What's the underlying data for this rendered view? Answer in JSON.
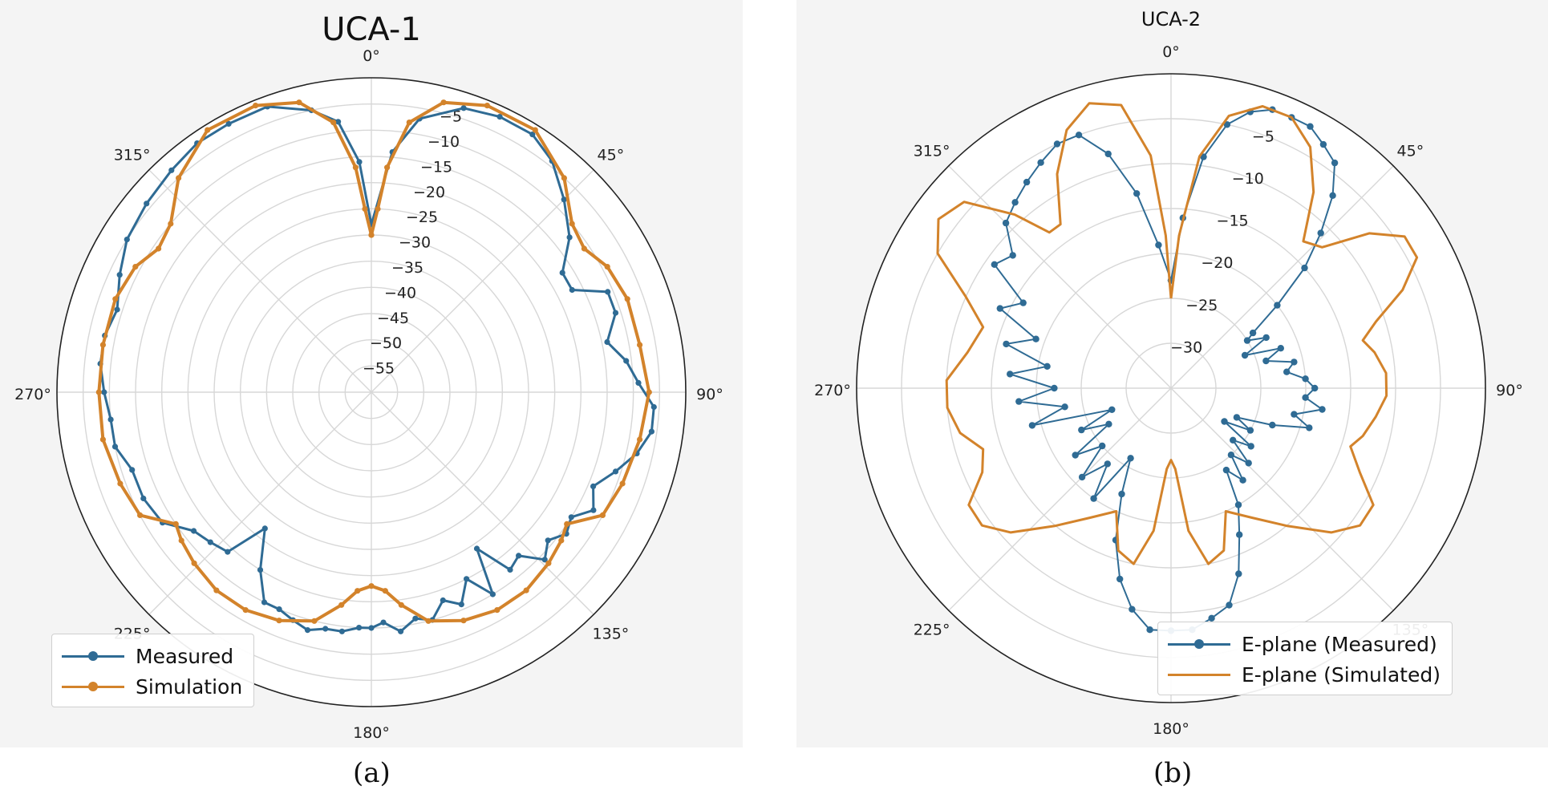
{
  "colors": {
    "measured": "#2f6b94",
    "simulated": "#d3832b",
    "grid": "#d7d7d7",
    "frame": "#222222"
  },
  "chart_data": [
    {
      "type": "polar",
      "title": "UCA-1",
      "caption": "(a)",
      "theta_direction": "clockwise",
      "theta_zero": "top",
      "theta_ticks": [
        "0°",
        "45°",
        "90°",
        "135°",
        "180°",
        "225°",
        "270°",
        "315°"
      ],
      "r_range": [
        -60,
        0
      ],
      "r_ticks": [
        "−5",
        "−10",
        "−15",
        "−20",
        "−25",
        "−30",
        "−35",
        "−40",
        "−45",
        "−50",
        "−55"
      ],
      "r_tick_values": [
        -5,
        -10,
        -15,
        -20,
        -25,
        -30,
        -35,
        -40,
        -45,
        -50,
        -55
      ],
      "legend": {
        "position": "lower-left"
      },
      "series": [
        {
          "name": "Measured",
          "color": "#2f6b94",
          "style": "line-dots",
          "points": [
            [
              0,
              -28
            ],
            [
              5,
              -14
            ],
            [
              10,
              -7
            ],
            [
              18,
              -3
            ],
            [
              25,
              -2
            ],
            [
              32,
              -2
            ],
            [
              38,
              -4
            ],
            [
              45,
              -8
            ],
            [
              52,
              -12
            ],
            [
              58,
              -17
            ],
            [
              63,
              -17
            ],
            [
              67,
              -11
            ],
            [
              72,
              -11
            ],
            [
              78,
              -14
            ],
            [
              83,
              -11
            ],
            [
              88,
              -9
            ],
            [
              93,
              -6
            ],
            [
              98,
              -6
            ],
            [
              103,
              -8
            ],
            [
              108,
              -11
            ],
            [
              113,
              -14
            ],
            [
              118,
              -12
            ],
            [
              122,
              -15
            ],
            [
              126,
              -14
            ],
            [
              130,
              -16
            ],
            [
              134,
              -14
            ],
            [
              138,
              -18
            ],
            [
              142,
              -17
            ],
            [
              146,
              -24
            ],
            [
              149,
              -15
            ],
            [
              153,
              -20
            ],
            [
              157,
              -16
            ],
            [
              161,
              -18
            ],
            [
              165,
              -15
            ],
            [
              169,
              -16
            ],
            [
              173,
              -14
            ],
            [
              177,
              -16
            ],
            [
              180,
              -15
            ],
            [
              183,
              -15
            ],
            [
              187,
              -14
            ],
            [
              191,
              -14
            ],
            [
              195,
              -13
            ],
            [
              199,
              -14
            ],
            [
              203,
              -15
            ],
            [
              207,
              -15
            ],
            [
              212,
              -20
            ],
            [
              218,
              -27
            ],
            [
              222,
              -19
            ],
            [
              227,
              -18
            ],
            [
              232,
              -17
            ],
            [
              238,
              -13
            ],
            [
              245,
              -12
            ],
            [
              252,
              -12
            ],
            [
              258,
              -10
            ],
            [
              264,
              -10
            ],
            [
              270,
              -9
            ],
            [
              276,
              -8
            ],
            [
              282,
              -8
            ],
            [
              288,
              -9
            ],
            [
              295,
              -7
            ],
            [
              302,
              -5
            ],
            [
              310,
              -4
            ],
            [
              318,
              -3
            ],
            [
              325,
              -2
            ],
            [
              332,
              -2
            ],
            [
              340,
              -2
            ],
            [
              348,
              -5
            ],
            [
              353,
              -8
            ],
            [
              357,
              -16
            ],
            [
              360,
              -28
            ]
          ]
        },
        {
          "name": "Simulation",
          "color": "#d3832b",
          "style": "line-dots",
          "points": [
            [
              0,
              -30
            ],
            [
              2,
              -25
            ],
            [
              4,
              -17
            ],
            [
              8,
              -8
            ],
            [
              14,
              -3
            ],
            [
              22,
              -1
            ],
            [
              32,
              -1
            ],
            [
              42,
              -5
            ],
            [
              50,
              -10
            ],
            [
              56,
              -11
            ],
            [
              62,
              -9
            ],
            [
              70,
              -8
            ],
            [
              80,
              -8
            ],
            [
              90,
              -7
            ],
            [
              100,
              -8
            ],
            [
              110,
              -9
            ],
            [
              118,
              -10
            ],
            [
              124,
              -15
            ],
            [
              128,
              -14
            ],
            [
              134,
              -13
            ],
            [
              142,
              -12
            ],
            [
              150,
              -12
            ],
            [
              158,
              -13
            ],
            [
              166,
              -15
            ],
            [
              172,
              -19
            ],
            [
              176,
              -22
            ],
            [
              180,
              -23
            ],
            [
              184,
              -22
            ],
            [
              188,
              -19
            ],
            [
              194,
              -15
            ],
            [
              202,
              -13
            ],
            [
              210,
              -12
            ],
            [
              218,
              -12
            ],
            [
              226,
              -13
            ],
            [
              232,
              -14
            ],
            [
              236,
              -15
            ],
            [
              242,
              -10
            ],
            [
              250,
              -9
            ],
            [
              260,
              -8
            ],
            [
              270,
              -8
            ],
            [
              280,
              -8
            ],
            [
              290,
              -8
            ],
            [
              298,
              -9
            ],
            [
              304,
              -11
            ],
            [
              310,
              -10
            ],
            [
              318,
              -5
            ],
            [
              328,
              -1
            ],
            [
              338,
              -1
            ],
            [
              346,
              -3
            ],
            [
              352,
              -8
            ],
            [
              356,
              -17
            ],
            [
              358,
              -25
            ],
            [
              360,
              -30
            ]
          ]
        }
      ]
    },
    {
      "type": "polar",
      "title": "UCA-2",
      "caption": "(b)",
      "theta_direction": "clockwise",
      "theta_zero": "top",
      "theta_ticks": [
        "0°",
        "45°",
        "90°",
        "135°",
        "180°",
        "225°",
        "270°",
        "315°"
      ],
      "r_range": [
        -35,
        0
      ],
      "r_ticks": [
        "−5",
        "−10",
        "−15",
        "−20",
        "−25",
        "−30"
      ],
      "r_tick_values": [
        -5,
        -10,
        -15,
        -20,
        -25,
        -30
      ],
      "legend": {
        "position": "lower-right"
      },
      "series": [
        {
          "name": "E-plane (Measured)",
          "color": "#2f6b94",
          "style": "line-dots",
          "points": [
            [
              0,
              -23
            ],
            [
              4,
              -16
            ],
            [
              8,
              -9
            ],
            [
              12,
              -5
            ],
            [
              16,
              -3
            ],
            [
              20,
              -2
            ],
            [
              24,
              -2
            ],
            [
              28,
              -2
            ],
            [
              32,
              -3
            ],
            [
              36,
              -4
            ],
            [
              40,
              -7
            ],
            [
              44,
              -11
            ],
            [
              48,
              -15
            ],
            [
              52,
              -20
            ],
            [
              56,
              -24
            ],
            [
              58,
              -25
            ],
            [
              62,
              -23
            ],
            [
              66,
              -26
            ],
            [
              70,
              -22
            ],
            [
              74,
              -24
            ],
            [
              78,
              -21
            ],
            [
              82,
              -22
            ],
            [
              86,
              -20
            ],
            [
              90,
              -19
            ],
            [
              94,
              -20
            ],
            [
              98,
              -18
            ],
            [
              102,
              -21
            ],
            [
              106,
              -19
            ],
            [
              110,
              -23
            ],
            [
              114,
              -27
            ],
            [
              118,
              -25
            ],
            [
              122,
              -28
            ],
            [
              126,
              -24
            ],
            [
              130,
              -26
            ],
            [
              134,
              -23
            ],
            [
              138,
              -25
            ],
            [
              142,
              -22
            ],
            [
              146,
              -24
            ],
            [
              150,
              -20
            ],
            [
              155,
              -17
            ],
            [
              160,
              -13
            ],
            [
              165,
              -10
            ],
            [
              170,
              -9
            ],
            [
              175,
              -8
            ],
            [
              180,
              -8
            ],
            [
              185,
              -8
            ],
            [
              190,
              -10
            ],
            [
              195,
              -13
            ],
            [
              200,
              -17
            ],
            [
              205,
              -22
            ],
            [
              210,
              -26
            ],
            [
              215,
              -20
            ],
            [
              220,
              -24
            ],
            [
              225,
              -21
            ],
            [
              230,
              -25
            ],
            [
              235,
              -22
            ],
            [
              240,
              -27
            ],
            [
              245,
              -24
            ],
            [
              250,
              -28
            ],
            [
              255,
              -19
            ],
            [
              260,
              -23
            ],
            [
              265,
              -18
            ],
            [
              270,
              -22
            ],
            [
              275,
              -17
            ],
            [
              280,
              -21
            ],
            [
              285,
              -16
            ],
            [
              290,
              -19
            ],
            [
              295,
              -14
            ],
            [
              300,
              -16
            ],
            [
              305,
              -11
            ],
            [
              310,
              -12
            ],
            [
              315,
              -9
            ],
            [
              320,
              -8
            ],
            [
              325,
              -7
            ],
            [
              330,
              -6
            ],
            [
              335,
              -5
            ],
            [
              340,
              -5
            ],
            [
              345,
              -8
            ],
            [
              350,
              -13
            ],
            [
              355,
              -19
            ],
            [
              360,
              -23
            ]
          ]
        },
        {
          "name": "E-plane (Simulated)",
          "color": "#d3832b",
          "style": "line",
          "points": [
            [
              0,
              -25
            ],
            [
              3,
              -18
            ],
            [
              7,
              -9
            ],
            [
              12,
              -4
            ],
            [
              18,
              -2
            ],
            [
              24,
              -2
            ],
            [
              30,
              -4
            ],
            [
              36,
              -8
            ],
            [
              42,
              -13
            ],
            [
              47,
              -12
            ],
            [
              52,
              -7
            ],
            [
              57,
              -4
            ],
            [
              62,
              -4
            ],
            [
              67,
              -7
            ],
            [
              72,
              -11
            ],
            [
              76,
              -13
            ],
            [
              80,
              -12
            ],
            [
              86,
              -11
            ],
            [
              92,
              -11
            ],
            [
              98,
              -12
            ],
            [
              104,
              -13
            ],
            [
              108,
              -14
            ],
            [
              114,
              -12
            ],
            [
              120,
              -9
            ],
            [
              126,
              -9
            ],
            [
              132,
              -11
            ],
            [
              140,
              -15
            ],
            [
              148,
              -18
            ],
            [
              156,
              -20
            ],
            [
              162,
              -16
            ],
            [
              168,
              -15
            ],
            [
              173,
              -19
            ],
            [
              177,
              -26
            ],
            [
              180,
              -27
            ],
            [
              183,
              -26
            ],
            [
              187,
              -19
            ],
            [
              192,
              -15
            ],
            [
              198,
              -16
            ],
            [
              204,
              -20
            ],
            [
              212,
              -18
            ],
            [
              220,
              -15
            ],
            [
              228,
              -11
            ],
            [
              234,
              -9
            ],
            [
              240,
              -9
            ],
            [
              246,
              -12
            ],
            [
              252,
              -13
            ],
            [
              258,
              -11
            ],
            [
              265,
              -10
            ],
            [
              272,
              -10
            ],
            [
              280,
              -12
            ],
            [
              288,
              -13
            ],
            [
              294,
              -10
            ],
            [
              300,
              -5
            ],
            [
              306,
              -3
            ],
            [
              312,
              -4
            ],
            [
              318,
              -9
            ],
            [
              322,
              -13
            ],
            [
              326,
              -13
            ],
            [
              332,
              -8
            ],
            [
              338,
              -4
            ],
            [
              344,
              -2
            ],
            [
              350,
              -3
            ],
            [
              355,
              -9
            ],
            [
              358,
              -18
            ],
            [
              360,
              -25
            ]
          ]
        }
      ]
    }
  ]
}
